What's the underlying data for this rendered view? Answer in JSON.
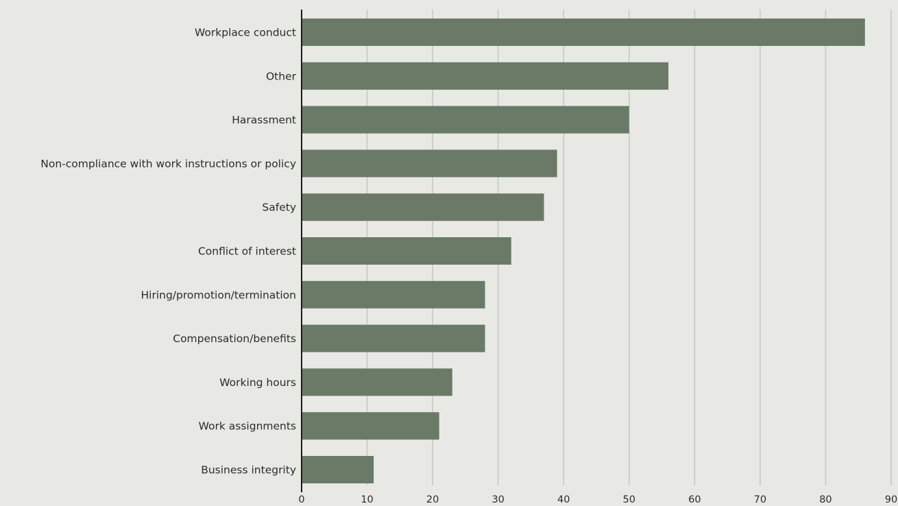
{
  "chart_data": {
    "type": "bar",
    "orientation": "horizontal",
    "title": "",
    "xlabel": "",
    "ylabel": "",
    "categories": [
      "Workplace conduct",
      "Other",
      "Harassment",
      "Non-compliance with work instructions or policy",
      "Safety",
      "Conflict of interest",
      "Hiring/promotion/termination",
      "Compensation/benefits",
      "Working hours",
      "Work assignments",
      "Business integrity"
    ],
    "values": [
      86,
      56,
      50,
      39,
      37,
      32,
      28,
      28,
      23,
      21,
      11
    ],
    "xlim": [
      0,
      90
    ],
    "xticks": [
      0,
      10,
      20,
      30,
      40,
      50,
      60,
      70,
      80,
      90
    ],
    "xtick_labels": [
      "0",
      "10",
      "20",
      "30",
      "40",
      "50",
      "60",
      "70",
      "80",
      "90"
    ],
    "grid": true,
    "legend": "none"
  },
  "colors": {
    "bar": "#6a7a67",
    "background": "#e8e9e5",
    "grid": "#c6c8c4",
    "axis": "#1a1a1a",
    "text": "#2b2b2b"
  }
}
